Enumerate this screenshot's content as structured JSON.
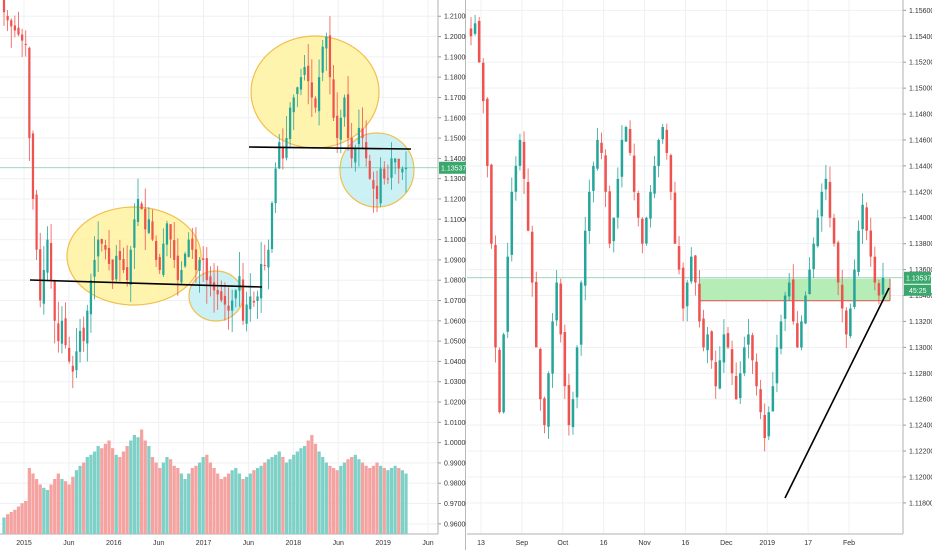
{
  "colors": {
    "up": "#26a69a",
    "down": "#ef5350",
    "vol_up": "#7fd1c8",
    "vol_down": "#f4a3a1",
    "grid": "#eef0f3",
    "price_line": "#7cc6a8",
    "badge": "#3aa76d",
    "ellipse_yellow_fill": "#fff3a6",
    "ellipse_yellow_stroke": "#f0b93a",
    "ellipse_blue_fill": "#c6f0f5",
    "ellipse_blue_stroke": "#f0b93a",
    "zone_fill": "#b6ecb6",
    "zone_border": "#d9534f",
    "trendline": "#000000"
  },
  "chart_data": [
    {
      "type": "candlestick",
      "panel": "left",
      "timeframe": "weekly",
      "y_axis": {
        "range": [
          0.955,
          1.218
        ],
        "tick_labels": [
          "1.22000",
          "1.21000",
          "1.20000",
          "1.19000",
          "1.18000",
          "1.17000",
          "1.16000",
          "1.15000",
          "1.14000",
          "1.13000",
          "1.12000",
          "1.11000",
          "1.10000",
          "1.09000",
          "1.08000",
          "1.07000",
          "1.06000",
          "1.05000",
          "1.04000",
          "1.03000",
          "1.02000",
          "1.01000",
          "1.00000",
          "0.99000",
          "0.98000",
          "0.97000",
          "0.96000"
        ]
      },
      "x_axis": {
        "tick_labels": [
          "2015",
          "Jun",
          "2016",
          "Jun",
          "2017",
          "Jun",
          "2018",
          "Jun",
          "2019",
          "Jun"
        ]
      },
      "current_price_label": "1.13537",
      "price_series_close": [
        1.212,
        1.208,
        1.205,
        1.203,
        1.201,
        1.198,
        1.196,
        1.15,
        1.12,
        1.095,
        1.07,
        1.085,
        1.1,
        1.08,
        1.06,
        1.05,
        1.06,
        1.048,
        1.04,
        1.035,
        1.045,
        1.055,
        1.05,
        1.065,
        1.08,
        1.09,
        1.1,
        1.098,
        1.095,
        1.088,
        1.08,
        1.092,
        1.09,
        1.085,
        1.08,
        1.095,
        1.11,
        1.12,
        1.115,
        1.105,
        1.11,
        1.1,
        1.09,
        1.085,
        1.098,
        1.108,
        1.1,
        1.09,
        1.08,
        1.085,
        1.093,
        1.1,
        1.095,
        1.085,
        1.09,
        1.09,
        1.08,
        1.078,
        1.075,
        1.073,
        1.07,
        1.068,
        1.065,
        1.07,
        1.075,
        1.082,
        1.06,
        1.068,
        1.072,
        1.069,
        1.072,
        1.088,
        1.087,
        1.095,
        1.118,
        1.135,
        1.148,
        1.14,
        1.15,
        1.165,
        1.17,
        1.175,
        1.18,
        1.185,
        1.178,
        1.17,
        1.165,
        1.18,
        1.195,
        1.2,
        1.18,
        1.16,
        1.15,
        1.16,
        1.17,
        1.15,
        1.14,
        1.145,
        1.155,
        1.15,
        1.14,
        1.13,
        1.125,
        1.12,
        1.135,
        1.13,
        1.13,
        1.14,
        1.14,
        1.135,
        1.135,
        1.13537
      ],
      "volume": [
        0.15,
        0.18,
        0.2,
        0.22,
        0.25,
        0.28,
        0.3,
        0.6,
        0.55,
        0.5,
        0.45,
        0.42,
        0.4,
        0.45,
        0.5,
        0.55,
        0.5,
        0.48,
        0.45,
        0.52,
        0.58,
        0.62,
        0.65,
        0.7,
        0.72,
        0.75,
        0.8,
        0.78,
        0.82,
        0.85,
        0.78,
        0.72,
        0.7,
        0.75,
        0.8,
        0.85,
        0.9,
        0.88,
        0.95,
        0.85,
        0.8,
        0.7,
        0.65,
        0.6,
        0.65,
        0.7,
        0.68,
        0.62,
        0.6,
        0.55,
        0.5,
        0.55,
        0.6,
        0.62,
        0.65,
        0.7,
        0.72,
        0.65,
        0.6,
        0.55,
        0.5,
        0.52,
        0.55,
        0.58,
        0.6,
        0.55,
        0.5,
        0.52,
        0.55,
        0.58,
        0.6,
        0.62,
        0.65,
        0.68,
        0.7,
        0.72,
        0.75,
        0.7,
        0.65,
        0.68,
        0.72,
        0.75,
        0.78,
        0.8,
        0.85,
        0.9,
        0.82,
        0.75,
        0.7,
        0.65,
        0.62,
        0.6,
        0.58,
        0.62,
        0.65,
        0.68,
        0.7,
        0.72,
        0.68,
        0.65,
        0.62,
        0.6,
        0.62,
        0.65,
        0.62,
        0.6,
        0.58,
        0.6,
        0.62,
        0.6,
        0.58,
        0.55
      ]
    },
    {
      "type": "candlestick",
      "panel": "right",
      "timeframe": "daily",
      "y_axis": {
        "range": [
          1.1156,
          1.1568
        ],
        "tick_labels": [
          "1.15600",
          "1.15400",
          "1.15200",
          "1.15000",
          "1.14800",
          "1.14600",
          "1.14400",
          "1.14200",
          "1.14000",
          "1.13800",
          "1.13600",
          "1.13400",
          "1.13200",
          "1.13000",
          "1.12800",
          "1.12600",
          "1.12400",
          "1.12200",
          "1.12000",
          "1.11800"
        ]
      },
      "x_axis": {
        "tick_labels": [
          "13",
          "Sep",
          "Oct",
          "16",
          "Nov",
          "16",
          "Dec",
          "2019",
          "17",
          "Feb"
        ]
      },
      "current_price_label": "1.13537",
      "countdown_label": "45:25",
      "price_series_close": [
        1.154,
        1.155,
        1.152,
        1.149,
        1.144,
        1.138,
        1.13,
        1.125,
        1.131,
        1.137,
        1.142,
        1.144,
        1.146,
        1.143,
        1.139,
        1.135,
        1.13,
        1.126,
        1.124,
        1.128,
        1.132,
        1.135,
        1.131,
        1.127,
        1.124,
        1.126,
        1.13,
        1.135,
        1.139,
        1.142,
        1.144,
        1.146,
        1.145,
        1.142,
        1.138,
        1.14,
        1.143,
        1.146,
        1.147,
        1.145,
        1.142,
        1.14,
        1.138,
        1.14,
        1.142,
        1.144,
        1.146,
        1.147,
        1.145,
        1.142,
        1.138,
        1.136,
        1.133,
        1.135,
        1.137,
        1.135,
        1.132,
        1.13,
        1.131,
        1.129,
        1.127,
        1.129,
        1.131,
        1.13,
        1.128,
        1.126,
        1.128,
        1.13,
        1.131,
        1.129,
        1.127,
        1.125,
        1.123,
        1.125,
        1.127,
        1.13,
        1.132,
        1.134,
        1.135,
        1.132,
        1.13,
        1.132,
        1.134,
        1.136,
        1.138,
        1.14,
        1.142,
        1.143,
        1.14,
        1.138,
        1.135,
        1.133,
        1.131,
        1.133,
        1.136,
        1.139,
        1.141,
        1.139,
        1.137,
        1.135,
        1.134,
        1.13537
      ]
    }
  ]
}
